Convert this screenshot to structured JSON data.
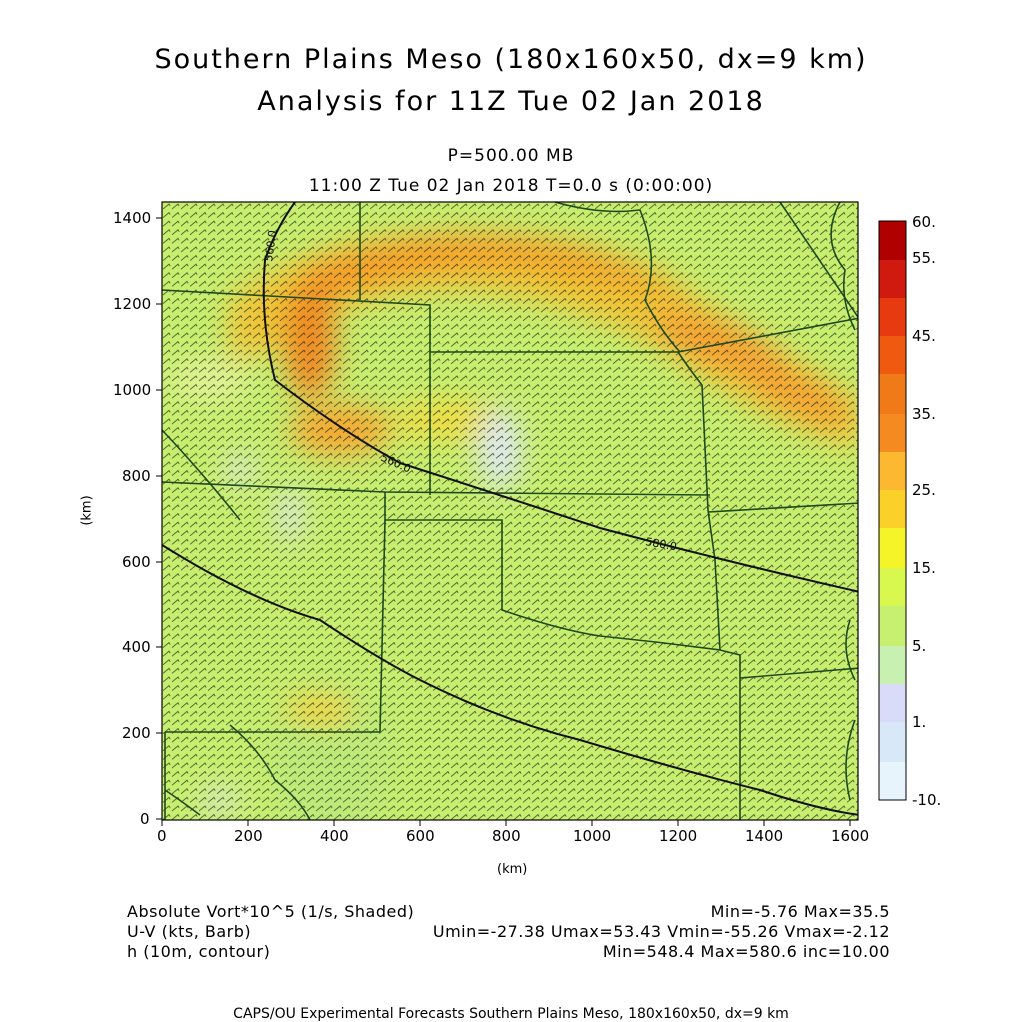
{
  "header": {
    "title_line1": "Southern Plains Meso (180x160x50, dx=9 km)",
    "title_line2": "Analysis for 11Z Tue 02 Jan 2018",
    "level": "P=500.00 MB",
    "valid_time": "11:00 Z Tue 02 Jan 2018    T=0.0 s (0:00:00)"
  },
  "axes": {
    "x_unit": "(km)",
    "y_unit": "(km)",
    "x_ticks": [
      "0",
      "200",
      "400",
      "600",
      "800",
      "1000",
      "1200",
      "1400",
      "1600"
    ],
    "y_ticks": [
      "0",
      "200",
      "400",
      "600",
      "800",
      "1000",
      "1200",
      "1400"
    ]
  },
  "colorbar": {
    "labels": [
      "60.",
      "55.",
      "45.",
      "35.",
      "25.",
      "15.",
      "5.",
      "1.",
      "-10."
    ],
    "colors": [
      "#b00000",
      "#d01a10",
      "#e83a10",
      "#f05a10",
      "#f58a20",
      "#fbb830",
      "#f8e020",
      "#e8f850",
      "#d0f070",
      "#c8f0b0",
      "#d8dcf8",
      "#d8e8f8",
      "#e8f4fb"
    ]
  },
  "contour_labels": [
    "560.0",
    "560.0",
    "580.0"
  ],
  "legend": {
    "row1_left": "Absolute Vort*10^5 (1/s, Shaded)",
    "row1_right": "Min=-5.76 Max=35.5",
    "row2_left": "U-V (kts, Barb)",
    "row2_right": "Umin=-27.38 Umax=53.43 Vmin=-55.26 Vmax=-2.12",
    "row3_left": "h (10m, contour)",
    "row3_right": "Min=548.4 Max=580.6 inc=10.00"
  },
  "footer": "CAPS/OU Experimental Forecasts  Southern Plains Meso, 180x160x50, dx=9 km",
  "style": {
    "field_base": "#c8ee70",
    "high_vort": "#f5a030",
    "low_vort": "#dce4f8",
    "boundary": "#1e4a1e",
    "contour": "#111111"
  }
}
